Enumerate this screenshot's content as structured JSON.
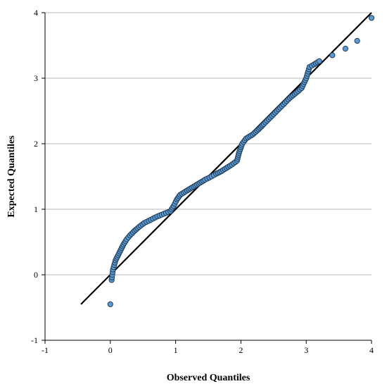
{
  "chart_data": {
    "type": "scatter",
    "title": "",
    "xlabel": "Observed Quantiles",
    "ylabel": "Expected Quantiles",
    "xlim": [
      -1,
      4
    ],
    "ylim": [
      -1,
      4
    ],
    "x_ticks": [
      "-1",
      "0",
      "1",
      "2",
      "3",
      "4"
    ],
    "y_ticks": [
      "-1",
      "0",
      "1",
      "2",
      "3",
      "4"
    ],
    "grid": "horizontal",
    "marker_color": "#5b9bd5",
    "reference_line": {
      "from": [
        -0.45,
        -0.45
      ],
      "to": [
        4.0,
        4.0
      ]
    },
    "series": [
      {
        "points": [
          [
            0.0,
            -0.45
          ],
          [
            0.02,
            -0.08
          ],
          [
            0.03,
            0.0
          ],
          [
            0.04,
            0.08
          ],
          [
            0.06,
            0.15
          ],
          [
            0.08,
            0.22
          ],
          [
            0.12,
            0.3
          ],
          [
            0.16,
            0.38
          ],
          [
            0.2,
            0.46
          ],
          [
            0.25,
            0.54
          ],
          [
            0.3,
            0.6
          ],
          [
            0.37,
            0.67
          ],
          [
            0.44,
            0.73
          ],
          [
            0.52,
            0.79
          ],
          [
            0.62,
            0.84
          ],
          [
            0.72,
            0.89
          ],
          [
            0.82,
            0.93
          ],
          [
            0.92,
            0.97
          ],
          [
            0.97,
            1.05
          ],
          [
            1.02,
            1.15
          ],
          [
            1.07,
            1.22
          ],
          [
            1.15,
            1.27
          ],
          [
            1.25,
            1.33
          ],
          [
            1.35,
            1.39
          ],
          [
            1.45,
            1.45
          ],
          [
            1.55,
            1.5
          ],
          [
            1.62,
            1.54
          ],
          [
            1.7,
            1.58
          ],
          [
            1.78,
            1.63
          ],
          [
            1.86,
            1.68
          ],
          [
            1.94,
            1.74
          ],
          [
            1.97,
            1.86
          ],
          [
            2.02,
            2.0
          ],
          [
            2.08,
            2.08
          ],
          [
            2.18,
            2.14
          ],
          [
            2.27,
            2.22
          ],
          [
            2.35,
            2.3
          ],
          [
            2.45,
            2.4
          ],
          [
            2.55,
            2.5
          ],
          [
            2.65,
            2.6
          ],
          [
            2.75,
            2.7
          ],
          [
            2.85,
            2.78
          ],
          [
            2.93,
            2.85
          ],
          [
            3.0,
            3.0
          ],
          [
            3.05,
            3.17
          ],
          [
            3.12,
            3.21
          ],
          [
            3.2,
            3.26
          ],
          [
            3.4,
            3.35
          ],
          [
            3.6,
            3.45
          ],
          [
            3.78,
            3.57
          ],
          [
            4.0,
            3.92
          ]
        ]
      }
    ]
  }
}
